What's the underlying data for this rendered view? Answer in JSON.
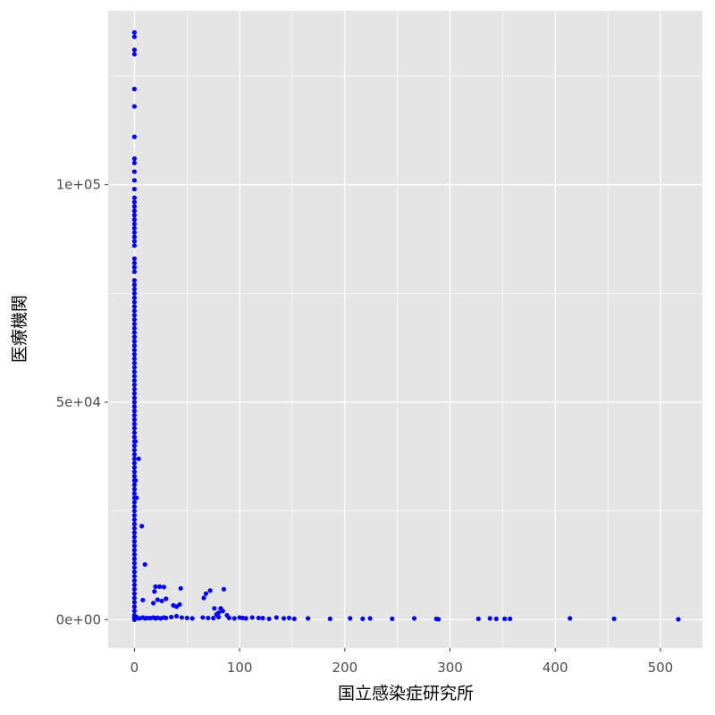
{
  "chart_data": {
    "type": "scatter",
    "xlabel": "国立感染症研究所",
    "ylabel": "医療機関",
    "xlim": [
      -25,
      540
    ],
    "ylim": [
      -6500,
      140000
    ],
    "x_ticks": [
      {
        "value": 0,
        "label": "0"
      },
      {
        "value": 100,
        "label": "100"
      },
      {
        "value": 200,
        "label": "200"
      },
      {
        "value": 300,
        "label": "300"
      },
      {
        "value": 400,
        "label": "400"
      },
      {
        "value": 500,
        "label": "500"
      }
    ],
    "y_ticks": [
      {
        "value": 0,
        "label": "0e+00"
      },
      {
        "value": 50000,
        "label": "5e+04"
      },
      {
        "value": 100000,
        "label": "1e+05"
      }
    ],
    "grid": true,
    "point_color": "#0000ff",
    "panel_background": "#e5e5e5",
    "grid_color": "#ffffff",
    "points": [
      [
        0,
        135000
      ],
      [
        0,
        134000
      ],
      [
        0,
        131000
      ],
      [
        0,
        130000
      ],
      [
        0,
        122000
      ],
      [
        0,
        118000
      ],
      [
        0,
        111000
      ],
      [
        0,
        106000
      ],
      [
        0,
        105000
      ],
      [
        0,
        103000
      ],
      [
        0,
        101000
      ],
      [
        0,
        99000
      ],
      [
        0,
        97000
      ],
      [
        0,
        96000
      ],
      [
        0,
        95000
      ],
      [
        0,
        94000
      ],
      [
        0,
        93000
      ],
      [
        0,
        92000
      ],
      [
        0,
        91000
      ],
      [
        0,
        90000
      ],
      [
        0,
        89000
      ],
      [
        0,
        88000
      ],
      [
        0,
        87000
      ],
      [
        0,
        86000
      ],
      [
        0,
        83000
      ],
      [
        0,
        82000
      ],
      [
        0,
        81000
      ],
      [
        0,
        80000
      ],
      [
        0,
        78000
      ],
      [
        0,
        77000
      ],
      [
        0,
        76000
      ],
      [
        0,
        75000
      ],
      [
        0,
        74000
      ],
      [
        0,
        73000
      ],
      [
        0,
        72000
      ],
      [
        0,
        71000
      ],
      [
        0,
        70000
      ],
      [
        0,
        69000
      ],
      [
        0,
        68000
      ],
      [
        0,
        67000
      ],
      [
        0,
        66000
      ],
      [
        0,
        65000
      ],
      [
        0,
        64000
      ],
      [
        0,
        63000
      ],
      [
        0,
        62000
      ],
      [
        0,
        61000
      ],
      [
        0,
        60000
      ],
      [
        0,
        59000
      ],
      [
        0,
        58000
      ],
      [
        0,
        57000
      ],
      [
        0,
        56000
      ],
      [
        0,
        55000
      ],
      [
        0,
        54000
      ],
      [
        0,
        53000
      ],
      [
        0,
        52000
      ],
      [
        0,
        51000
      ],
      [
        0,
        50000
      ],
      [
        0,
        49000
      ],
      [
        0,
        48000
      ],
      [
        0,
        47000
      ],
      [
        0,
        46000
      ],
      [
        0,
        45000
      ],
      [
        0,
        44000
      ],
      [
        0,
        43000
      ],
      [
        0,
        42000
      ],
      [
        0,
        41000
      ],
      [
        0,
        40000
      ],
      [
        0,
        39000
      ],
      [
        0,
        38000
      ],
      [
        0,
        37000
      ],
      [
        0,
        36000
      ],
      [
        0,
        35000
      ],
      [
        0,
        34000
      ],
      [
        0,
        33000
      ],
      [
        0,
        32000
      ],
      [
        0,
        31000
      ],
      [
        0,
        30000
      ],
      [
        0,
        29000
      ],
      [
        0,
        28000
      ],
      [
        0,
        27000
      ],
      [
        0,
        26000
      ],
      [
        0,
        25000
      ],
      [
        0,
        24000
      ],
      [
        0,
        23000
      ],
      [
        0,
        22000
      ],
      [
        0,
        21000
      ],
      [
        0,
        20000
      ],
      [
        0,
        19000
      ],
      [
        0,
        18000
      ],
      [
        0,
        17000
      ],
      [
        0,
        16000
      ],
      [
        0,
        15000
      ],
      [
        0,
        14000
      ],
      [
        0,
        13000
      ],
      [
        0,
        12000
      ],
      [
        0,
        11000
      ],
      [
        0,
        10000
      ],
      [
        0,
        9000
      ],
      [
        0,
        8000
      ],
      [
        0,
        7000
      ],
      [
        0,
        6000
      ],
      [
        0,
        5000
      ],
      [
        0,
        4000
      ],
      [
        0,
        3000
      ],
      [
        0,
        2000
      ],
      [
        0,
        1000
      ],
      [
        0,
        500
      ],
      [
        0,
        0
      ],
      [
        1,
        41000
      ],
      [
        1,
        32000
      ],
      [
        2,
        28000
      ],
      [
        4,
        37000
      ],
      [
        7,
        21500
      ],
      [
        10,
        12700
      ],
      [
        8,
        4500
      ],
      [
        20,
        7600
      ],
      [
        19,
        6500
      ],
      [
        24,
        7600
      ],
      [
        28,
        7500
      ],
      [
        22,
        4600
      ],
      [
        26,
        4300
      ],
      [
        30,
        4800
      ],
      [
        18,
        3800
      ],
      [
        37,
        3300
      ],
      [
        40,
        3000
      ],
      [
        43,
        3500
      ],
      [
        44,
        7200
      ],
      [
        66,
        5000
      ],
      [
        72,
        6700
      ],
      [
        68,
        6000
      ],
      [
        76,
        2600
      ],
      [
        82,
        2600
      ],
      [
        85,
        7000
      ],
      [
        84,
        2000
      ],
      [
        80,
        1600
      ],
      [
        78,
        1200
      ],
      [
        88,
        1000
      ],
      [
        2,
        600
      ],
      [
        3,
        400
      ],
      [
        5,
        300
      ],
      [
        8,
        500
      ],
      [
        10,
        300
      ],
      [
        12,
        400
      ],
      [
        15,
        350
      ],
      [
        18,
        500
      ],
      [
        20,
        300
      ],
      [
        22,
        450
      ],
      [
        25,
        300
      ],
      [
        28,
        500
      ],
      [
        30,
        400
      ],
      [
        35,
        600
      ],
      [
        40,
        800
      ],
      [
        45,
        500
      ],
      [
        50,
        400
      ],
      [
        55,
        300
      ],
      [
        65,
        500
      ],
      [
        70,
        400
      ],
      [
        75,
        350
      ],
      [
        80,
        600
      ],
      [
        90,
        400
      ],
      [
        95,
        300
      ],
      [
        100,
        500
      ],
      [
        103,
        400
      ],
      [
        106,
        300
      ],
      [
        112,
        500
      ],
      [
        118,
        400
      ],
      [
        122,
        350
      ],
      [
        128,
        200
      ],
      [
        135,
        500
      ],
      [
        142,
        300
      ],
      [
        147,
        400
      ],
      [
        152,
        200
      ],
      [
        165,
        300
      ],
      [
        186,
        200
      ],
      [
        205,
        300
      ],
      [
        217,
        200
      ],
      [
        224,
        300
      ],
      [
        245,
        200
      ],
      [
        266,
        300
      ],
      [
        287,
        200
      ],
      [
        289,
        100
      ],
      [
        327,
        200
      ],
      [
        338,
        300
      ],
      [
        344,
        200
      ],
      [
        352,
        200
      ],
      [
        357,
        200
      ],
      [
        414,
        300
      ],
      [
        456,
        200
      ],
      [
        517,
        100
      ]
    ]
  }
}
